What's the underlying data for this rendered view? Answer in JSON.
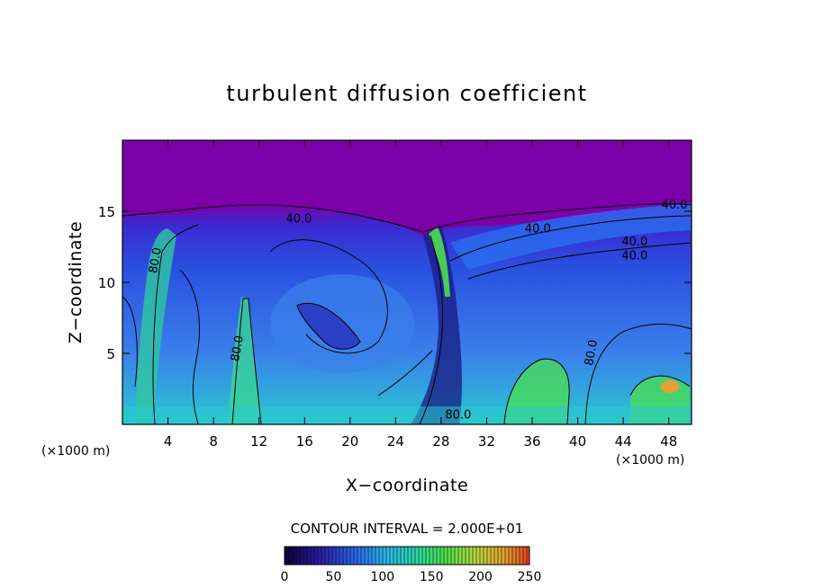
{
  "chart_data": {
    "type": "heatmap",
    "title": "turbulent diffusion coefficient",
    "xlabel": "X−coordinate",
    "ylabel": "Z−coordinate",
    "x_unit_left": "(×1000 m)",
    "x_unit_right": "(×1000 m)",
    "xlim": [
      0,
      50
    ],
    "ylim": [
      0,
      20
    ],
    "xticks": [
      4,
      8,
      12,
      16,
      20,
      24,
      28,
      32,
      36,
      40,
      44,
      48
    ],
    "yticks": [
      5,
      10,
      15
    ],
    "contour_interval_text": "CONTOUR INTERVAL = 2.000E+01",
    "contour_labels": [
      {
        "text": "40.0",
        "x": 15.5,
        "y": 14.2
      },
      {
        "text": "80.0",
        "x": 3.2,
        "y": 11.5
      },
      {
        "text": "80.0",
        "x": 10.4,
        "y": 5.3
      },
      {
        "text": "80.0",
        "x": 29.5,
        "y": 0.4
      },
      {
        "text": "80.0",
        "x": 41.5,
        "y": 5.0
      },
      {
        "text": "40.0",
        "x": 48.5,
        "y": 15.2
      },
      {
        "text": "40.0",
        "x": 45.0,
        "y": 12.6
      },
      {
        "text": "40.0",
        "x": 45.0,
        "y": 11.6
      },
      {
        "text": "40.0",
        "x": 36.5,
        "y": 13.5
      }
    ],
    "colorbar": {
      "min": 0,
      "max": 250,
      "ticks": [
        0,
        50,
        100,
        150,
        200,
        250
      ],
      "colors": [
        "#10003a",
        "#2a1fa8",
        "#2a6ef0",
        "#2bb8e8",
        "#2fd8a0",
        "#4ae050",
        "#b8d840",
        "#e8a030",
        "#e04020"
      ]
    },
    "colors": {
      "background_field": "#7a00a6",
      "upper_layer": "#7c00a8",
      "low_field": "#2a4ad8",
      "mid_field": "#3a7ae8"
    }
  }
}
